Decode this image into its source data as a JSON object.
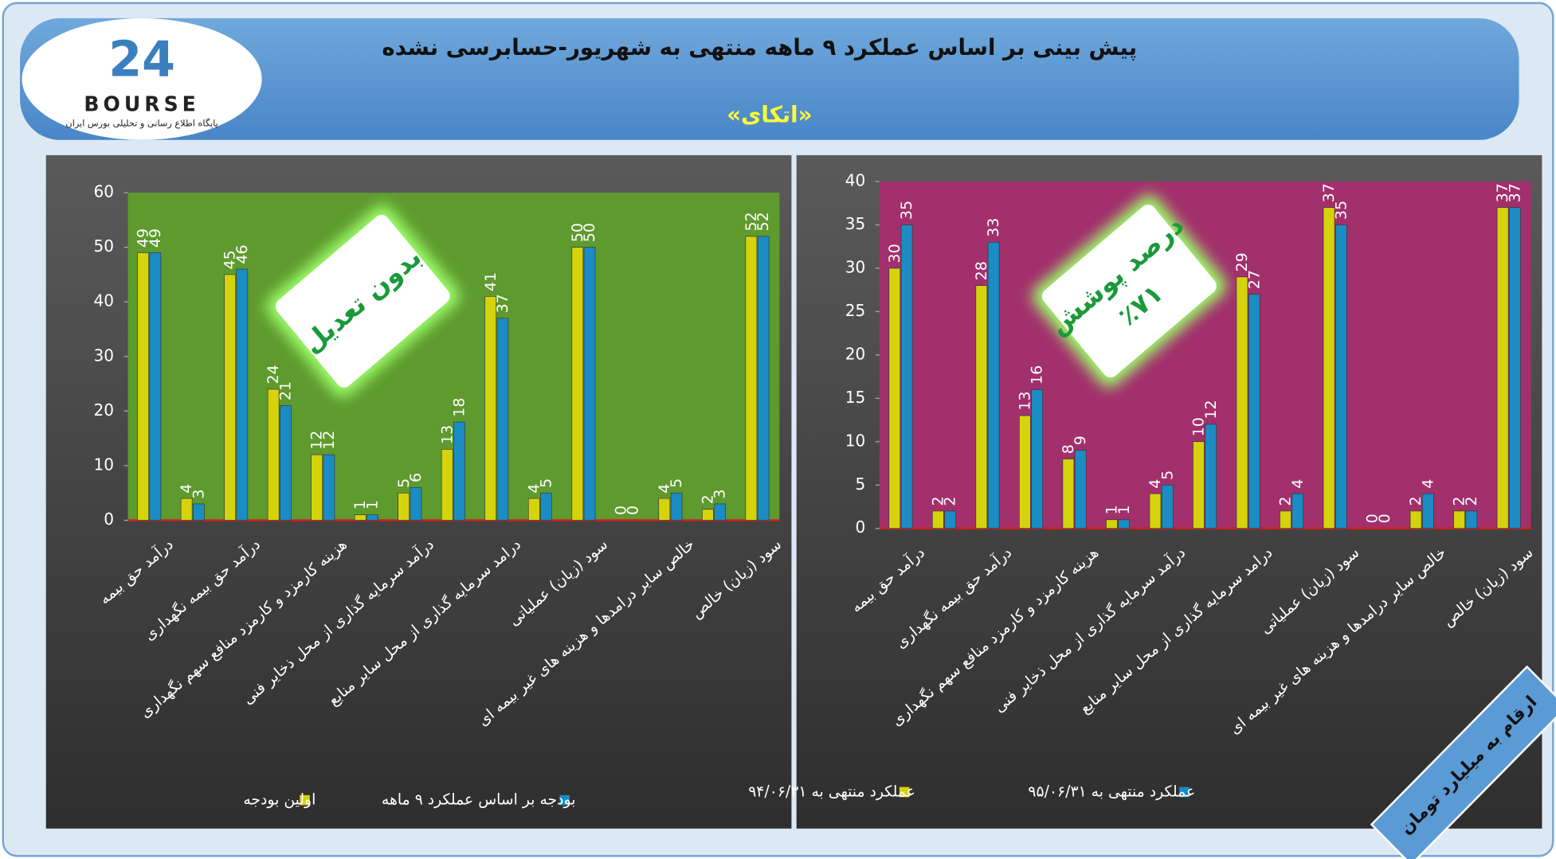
{
  "header": {
    "title": "پیش بینی بر اساس عملکرد ۹ ماهه منتهی به شهریور-حسابرسی نشده",
    "subtitle": "«اتکای»",
    "logo_number": "24",
    "logo_name": "BOURSE",
    "logo_tagline": "پایگاه اطلاع رسانی و تحلیلی بورس ایران"
  },
  "badge": "ارقام به میلیارد تومان",
  "stamps": [
    {
      "lines": [
        "بدون تعدیل"
      ]
    },
    {
      "lines": [
        "درصد پوشش",
        "٪۷۱"
      ]
    }
  ],
  "chart_data": [
    {
      "type": "bar",
      "categories": [
        "درآمد حق بیمه",
        null,
        "درآمد حق بیمه نگهداری",
        null,
        "هزینه کارمزد و کارمزد منافع سهم نگهداری",
        null,
        "درآمد سرمایه گذاری از محل ذخایر فنی",
        null,
        "درامد سرمایه گذاری از محل سایر منابع",
        null,
        "سود (زیان) عملیاتی",
        null,
        "خالص سایر درامدها و هزینه های غیر بیمه ای",
        null,
        "سود (زیان) خالص"
      ],
      "series": [
        {
          "name": "اولین بودجه",
          "color": "#d6d20c",
          "values": [
            49,
            4,
            45,
            24,
            12,
            1,
            5,
            13,
            41,
            4,
            50,
            0,
            4,
            2,
            52
          ]
        },
        {
          "name": "بودجه بر اساس عملکرد ۹ ماهه",
          "color": "#1b8cc4",
          "values": [
            49,
            3,
            46,
            21,
            12,
            1,
            6,
            18,
            37,
            5,
            50,
            0,
            5,
            3,
            52
          ]
        }
      ],
      "ylim": [
        0,
        60
      ],
      "yticks": [
        0,
        10,
        20,
        30,
        40,
        50,
        60
      ],
      "plot_color": "#5e9a2e"
    },
    {
      "type": "bar",
      "categories": [
        "درآمد حق بیمه",
        null,
        "درآمد حق بیمه نگهداری",
        null,
        "هزینه کارمزد و کارمزد منافع سهم نگهداری",
        null,
        "درآمد سرمایه گذاری از محل ذخایر فنی",
        null,
        "درامد سرمایه گذاری از محل سایر منابع",
        null,
        "سود (زیان) عملیاتی",
        null,
        "خالص سایر درامدها و هزینه های غیر بیمه ای",
        null,
        "سود (زیان) خالص"
      ],
      "series": [
        {
          "name": "عملکرد منتهی به ۹۴/۰۶/۳۱",
          "color": "#d6d20c",
          "values": [
            30,
            2,
            28,
            13,
            8,
            1,
            4,
            10,
            29,
            2,
            37,
            0,
            2,
            2,
            37
          ]
        },
        {
          "name": "عملکرد منتهی به ۹۵/۰۶/۳۱",
          "color": "#1b8cc4",
          "values": [
            35,
            2,
            33,
            16,
            9,
            1,
            5,
            12,
            27,
            4,
            35,
            0,
            4,
            2,
            37
          ]
        }
      ],
      "ylim": [
        0,
        40
      ],
      "yticks": [
        0,
        5,
        10,
        15,
        20,
        25,
        30,
        35,
        40
      ],
      "plot_color": "#a2306c"
    }
  ]
}
